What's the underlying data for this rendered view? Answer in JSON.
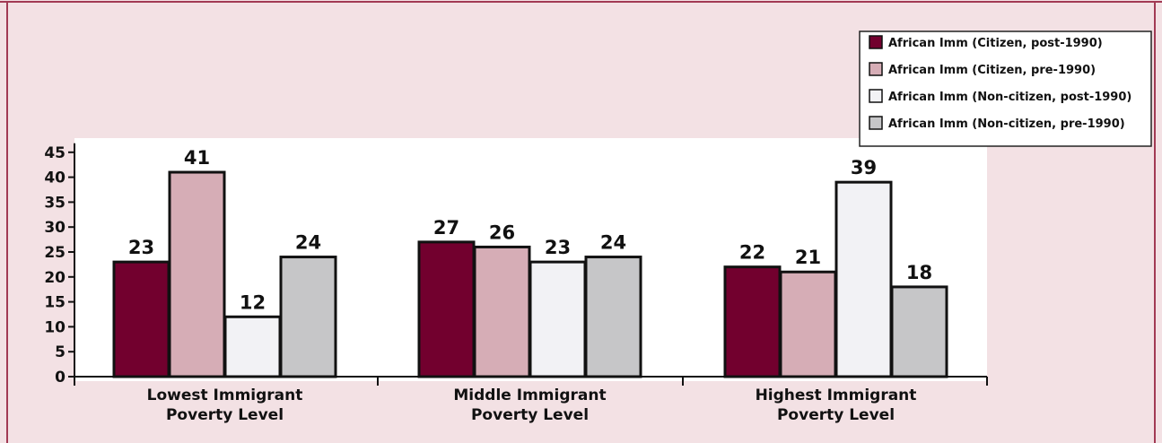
{
  "chart_data": {
    "type": "bar",
    "title": "",
    "xlabel": "",
    "ylabel": "",
    "ylim": [
      0,
      45
    ],
    "yticks": [
      0,
      5,
      10,
      15,
      20,
      25,
      30,
      35,
      40,
      45
    ],
    "categories": [
      [
        "Lowest Immigrant",
        "Poverty Level"
      ],
      [
        "Middle Immigrant",
        "Poverty Level"
      ],
      [
        "Highest Immigrant",
        "Poverty Level"
      ]
    ],
    "series": [
      {
        "name": "African Imm (Citizen, post-1990)",
        "color": "#72002e",
        "values": [
          23,
          27,
          22
        ]
      },
      {
        "name": "African Imm (Citizen, pre-1990)",
        "color": "#d6adb6",
        "values": [
          41,
          26,
          21
        ]
      },
      {
        "name": "African Imm (Non-citizen, post-1990)",
        "color": "#f2f2f5",
        "values": [
          12,
          23,
          39
        ]
      },
      {
        "name": "African Imm (Non-citizen, pre-1990)",
        "color": "#c6c6c8",
        "values": [
          24,
          24,
          18
        ]
      }
    ],
    "legend_position": "top-right",
    "grid": false,
    "plot_background": "#ffffff",
    "page_background": "#f3e1e4",
    "border_color": "#a23a54"
  }
}
